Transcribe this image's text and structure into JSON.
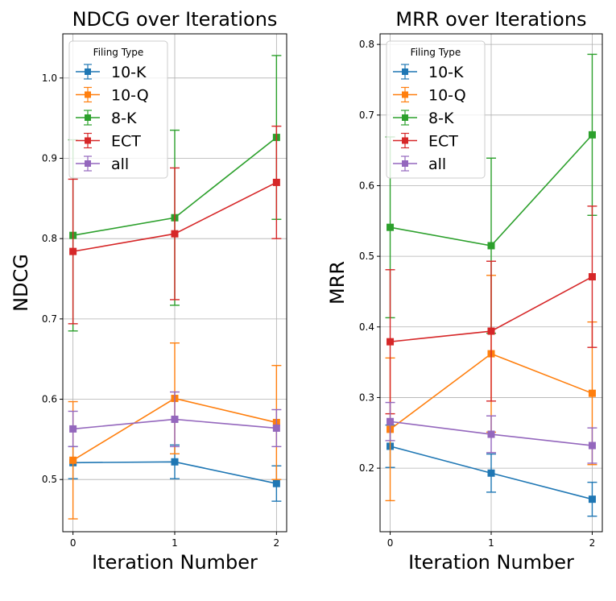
{
  "chart_data": [
    {
      "type": "line",
      "title": "NDCG over Iterations",
      "xlabel": "Iteration Number",
      "ylabel": "NDCG",
      "x": [
        0,
        1,
        2
      ],
      "xticks": [
        "0",
        "1",
        "2"
      ],
      "ylim": [
        0.435,
        1.055
      ],
      "yticks": [
        "0.5",
        "0.6",
        "0.7",
        "0.8",
        "0.9",
        "1.0"
      ],
      "ytick_values": [
        0.5,
        0.6,
        0.7,
        0.8,
        0.9,
        1.0
      ],
      "grid": true,
      "legend": {
        "title": "Filing Type",
        "placement": "top-left"
      },
      "series": [
        {
          "name": "10-K",
          "color": "#1f77b4",
          "values": [
            0.521,
            0.522,
            0.495
          ],
          "errors": [
            0.02,
            0.021,
            0.022
          ]
        },
        {
          "name": "10-Q",
          "color": "#ff7f0e",
          "values": [
            0.524,
            0.601,
            0.571
          ],
          "errors": [
            0.073,
            0.069,
            0.071
          ]
        },
        {
          "name": "8-K",
          "color": "#2ca02c",
          "values": [
            0.804,
            0.826,
            0.926
          ],
          "errors": [
            0.119,
            0.109,
            0.102
          ]
        },
        {
          "name": "ECT",
          "color": "#d62728",
          "values": [
            0.784,
            0.806,
            0.87
          ],
          "errors": [
            0.09,
            0.082,
            0.07
          ]
        },
        {
          "name": "all",
          "color": "#9467bd",
          "values": [
            0.563,
            0.575,
            0.564
          ],
          "errors": [
            0.022,
            0.034,
            0.023
          ]
        }
      ]
    },
    {
      "type": "line",
      "title": "MRR over Iterations",
      "xlabel": "Iteration Number",
      "ylabel": "MRR",
      "x": [
        0,
        1,
        2
      ],
      "xticks": [
        "0",
        "1",
        "2"
      ],
      "ylim": [
        0.11,
        0.815
      ],
      "yticks": [
        "0.2",
        "0.3",
        "0.4",
        "0.5",
        "0.6",
        "0.7",
        "0.8"
      ],
      "ytick_values": [
        0.2,
        0.3,
        0.4,
        0.5,
        0.6,
        0.7,
        0.8
      ],
      "grid": true,
      "legend": {
        "title": "Filing Type",
        "placement": "top-left"
      },
      "series": [
        {
          "name": "10-K",
          "color": "#1f77b4",
          "values": [
            0.231,
            0.193,
            0.156
          ],
          "errors": [
            0.03,
            0.027,
            0.024
          ]
        },
        {
          "name": "10-Q",
          "color": "#ff7f0e",
          "values": [
            0.255,
            0.362,
            0.306
          ],
          "errors": [
            0.101,
            0.111,
            0.101
          ]
        },
        {
          "name": "8-K",
          "color": "#2ca02c",
          "values": [
            0.541,
            0.515,
            0.672
          ],
          "errors": [
            0.128,
            0.124,
            0.114
          ]
        },
        {
          "name": "ECT",
          "color": "#d62728",
          "values": [
            0.379,
            0.394,
            0.471
          ],
          "errors": [
            0.102,
            0.099,
            0.1
          ]
        },
        {
          "name": "all",
          "color": "#9467bd",
          "values": [
            0.266,
            0.248,
            0.232
          ],
          "errors": [
            0.027,
            0.026,
            0.025
          ]
        }
      ]
    }
  ]
}
